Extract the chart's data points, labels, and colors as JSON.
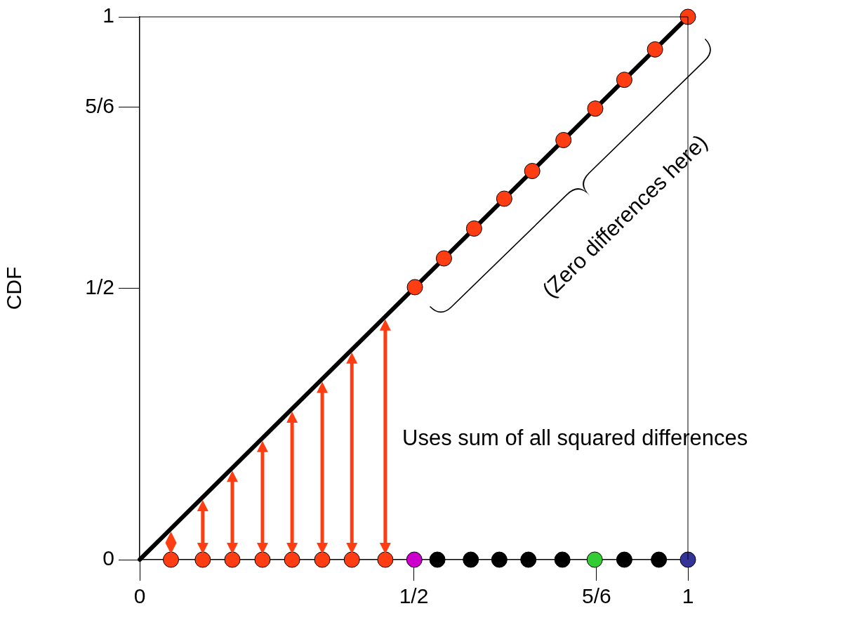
{
  "chart_data": {
    "type": "scatter",
    "ylabel": "CDF",
    "annotations": [
      "Uses sum of all squared differences",
      "(Zero differences here)"
    ],
    "xlim": [
      0,
      1
    ],
    "ylim": [
      0,
      1
    ],
    "xticks": [
      0,
      {
        "value": 0.5,
        "label": "1/2"
      },
      {
        "value": 0.8333,
        "label": "5/6"
      },
      1
    ],
    "yticks": [
      0,
      {
        "value": 0.5,
        "label": "1/2"
      },
      {
        "value": 0.8333,
        "label": "5/6"
      },
      1
    ],
    "series": [
      {
        "type": "line",
        "color": "#000000",
        "marker": "none",
        "x": [
          0,
          1
        ],
        "values": [
          0,
          1
        ]
      },
      {
        "color": "#ff3d12",
        "marker": "circle",
        "x": [
          0.502,
          0.555,
          0.61,
          0.665,
          0.716,
          0.773,
          0.831,
          0.884,
          0.94,
          1.0
        ],
        "values": [
          0.502,
          0.555,
          0.61,
          0.665,
          0.716,
          0.773,
          0.831,
          0.884,
          0.94,
          1.0
        ]
      },
      {
        "marker": "circle",
        "colors": [
          "#ff3d12",
          "#ff3d12",
          "#ff3d12",
          "#ff3d12",
          "#ff3d12",
          "#ff3d12",
          "#ff3d12",
          "#ff3d12",
          "#cc00cc",
          "#000000",
          "#000000",
          "#000000",
          "#000000",
          "#000000",
          "#33cc33",
          "#000000",
          "#000000",
          "#333399"
        ],
        "x": [
          0.057,
          0.115,
          0.169,
          0.224,
          0.278,
          0.333,
          0.387,
          0.448,
          0.501,
          0.543,
          0.604,
          0.656,
          0.709,
          0.771,
          0.83,
          0.884,
          0.947,
          1.0
        ],
        "values": [
          0,
          0,
          0,
          0,
          0,
          0,
          0,
          0,
          0,
          0,
          0,
          0,
          0,
          0,
          0,
          0,
          0,
          0
        ]
      }
    ]
  }
}
